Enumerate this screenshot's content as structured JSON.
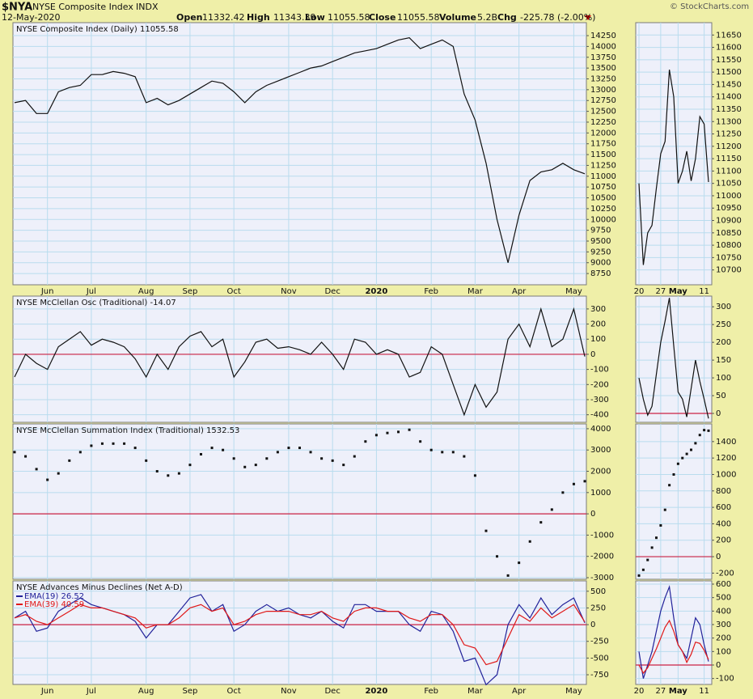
{
  "header": {
    "symbol": "$NYA",
    "name": "NYSE Composite Index",
    "exchange": "INDX",
    "date": "12-May-2020",
    "fields": [
      {
        "label": "Open",
        "value": 11332.42
      },
      {
        "label": "High",
        "value": 11343.39
      },
      {
        "label": "Low",
        "value": 11055.58
      },
      {
        "label": "Close",
        "value": 11055.58
      },
      {
        "label": "Volume",
        "value": "5.2B"
      },
      {
        "label": "Chg",
        "value": "-225.78 (-2.00%)"
      }
    ],
    "brand": "© StockCharts.com"
  },
  "chart_data": [
    {
      "type": "line",
      "title": "NYSE Composite Index (Daily) 11055.58",
      "show_categories": true,
      "grid": true,
      "color": "#111111",
      "categories": [
        null,
        null,
        null,
        "Jun",
        null,
        null,
        null,
        "Jul",
        null,
        null,
        null,
        null,
        "Aug",
        null,
        null,
        null,
        "Sep",
        null,
        null,
        null,
        "Oct",
        null,
        null,
        null,
        null,
        "Nov",
        null,
        null,
        null,
        "Dec",
        null,
        null,
        null,
        "2020",
        null,
        null,
        null,
        null,
        "Feb",
        null,
        null,
        null,
        "Mar",
        null,
        null,
        null,
        "Apr",
        null,
        null,
        null,
        null,
        "May",
        null
      ],
      "values": [
        12700,
        12750,
        12450,
        12450,
        12950,
        13050,
        13100,
        13350,
        13350,
        13420,
        13380,
        13300,
        12700,
        12800,
        12650,
        12750,
        12900,
        13050,
        13200,
        13150,
        12950,
        12700,
        12950,
        13100,
        13200,
        13300,
        13400,
        13500,
        13550,
        13650,
        13750,
        13850,
        13900,
        13950,
        14050,
        14150,
        14200,
        13950,
        14050,
        14150,
        14000,
        12900,
        12300,
        11300,
        10000,
        9000,
        10100,
        10900,
        11100,
        11150,
        11300,
        11150,
        11055.58
      ],
      "ylim": [
        8490,
        14550
      ],
      "yticks": [
        8750,
        9000,
        9250,
        9500,
        9750,
        10000,
        10250,
        10500,
        10750,
        11000,
        11250,
        11500,
        11750,
        12000,
        12250,
        12500,
        12750,
        13000,
        13250,
        13500,
        13750,
        14000,
        14250
      ]
    },
    {
      "type": "line",
      "show_categories": true,
      "grid": true,
      "color": "#111111",
      "categories": [
        "20",
        null,
        null,
        null,
        null,
        "27",
        null,
        null,
        null,
        "May",
        null,
        null,
        null,
        null,
        null,
        "11",
        null
      ],
      "values": [
        11050,
        10720,
        10850,
        10880,
        11030,
        11170,
        11220,
        11510,
        11400,
        11050,
        11100,
        11180,
        11060,
        11150,
        11320,
        11290,
        11055.58
      ],
      "ylim": [
        10640,
        11700
      ],
      "yticks": [
        10700,
        10750,
        10800,
        10850,
        10900,
        10950,
        11000,
        11050,
        11100,
        11150,
        11200,
        11250,
        11300,
        11350,
        11400,
        11450,
        11500,
        11550,
        11600,
        11650
      ]
    },
    {
      "type": "line",
      "title": "NYSE McClellan Osc (Traditional) -14.07",
      "show_categories": false,
      "grid": true,
      "color": "#111111",
      "hline": 0,
      "hline_color": "#cc2244",
      "categories": [
        null,
        null,
        null,
        "Jun",
        null,
        null,
        null,
        "Jul",
        null,
        null,
        null,
        null,
        "Aug",
        null,
        null,
        null,
        "Sep",
        null,
        null,
        null,
        "Oct",
        null,
        null,
        null,
        null,
        "Nov",
        null,
        null,
        null,
        "Dec",
        null,
        null,
        null,
        "2020",
        null,
        null,
        null,
        null,
        "Feb",
        null,
        null,
        null,
        "Mar",
        null,
        null,
        null,
        "Apr",
        null,
        null,
        null,
        null,
        "May",
        null
      ],
      "values": [
        -150,
        0,
        -60,
        -100,
        50,
        100,
        150,
        60,
        100,
        80,
        50,
        -30,
        -150,
        0,
        -100,
        50,
        120,
        150,
        50,
        100,
        -150,
        -50,
        80,
        100,
        40,
        50,
        30,
        0,
        80,
        0,
        -100,
        100,
        80,
        0,
        30,
        0,
        -150,
        -120,
        50,
        0,
        -200,
        -400,
        -200,
        -350,
        -250,
        100,
        200,
        50,
        300,
        50,
        100,
        300,
        -14.07
      ],
      "ylim": [
        -450,
        385
      ],
      "yticks": [
        -400,
        -300,
        -200,
        -100,
        0,
        100,
        200,
        300
      ]
    },
    {
      "type": "line",
      "show_categories": false,
      "grid": true,
      "color": "#111111",
      "hline": 0,
      "hline_color": "#cc2244",
      "categories": [
        "20",
        null,
        null,
        null,
        null,
        "27",
        null,
        null,
        null,
        "May",
        null,
        null,
        null,
        null,
        null,
        "11",
        null
      ],
      "values": [
        100,
        40,
        -5,
        20,
        110,
        200,
        260,
        325,
        190,
        60,
        40,
        -10,
        70,
        150,
        90,
        40,
        -14.07
      ],
      "ylim": [
        -25,
        330
      ],
      "yticks": [
        0,
        50,
        100,
        150,
        200,
        250,
        300
      ]
    },
    {
      "type": "dot",
      "title": "NYSE McClellan Summation Index (Traditional) 1532.53",
      "show_categories": false,
      "grid": true,
      "color": "#111111",
      "hline": 0,
      "hline_color": "#cc2244",
      "categories": [
        null,
        null,
        null,
        "Jun",
        null,
        null,
        null,
        "Jul",
        null,
        null,
        null,
        null,
        "Aug",
        null,
        null,
        null,
        "Sep",
        null,
        null,
        null,
        "Oct",
        null,
        null,
        null,
        null,
        "Nov",
        null,
        null,
        null,
        "Dec",
        null,
        null,
        null,
        "2020",
        null,
        null,
        null,
        null,
        "Feb",
        null,
        null,
        null,
        "Mar",
        null,
        null,
        null,
        "Apr",
        null,
        null,
        null,
        null,
        "May",
        null
      ],
      "values": [
        2900,
        2700,
        2100,
        1600,
        1900,
        2500,
        2900,
        3200,
        3300,
        3300,
        3300,
        3100,
        2500,
        2000,
        1800,
        1900,
        2300,
        2800,
        3100,
        3000,
        2600,
        2200,
        2300,
        2600,
        2900,
        3100,
        3100,
        2900,
        2600,
        2500,
        2300,
        2700,
        3400,
        3700,
        3800,
        3850,
        3950,
        3400,
        3000,
        2900,
        2900,
        2700,
        1800,
        -800,
        -2000,
        -2900,
        -2300,
        -1300,
        -400,
        200,
        1000,
        1400,
        1532.53
      ],
      "ylim": [
        -3075,
        4225
      ],
      "yticks": [
        -3000,
        -2000,
        -1000,
        0,
        1000,
        2000,
        3000,
        4000
      ]
    },
    {
      "type": "dot",
      "show_categories": false,
      "grid": true,
      "color": "#111111",
      "hline": 0,
      "hline_color": "#cc2244",
      "categories": [
        "20",
        null,
        null,
        null,
        null,
        "27",
        null,
        null,
        null,
        "May",
        null,
        null,
        null,
        null,
        null,
        "11",
        null
      ],
      "values": [
        -230,
        -160,
        -40,
        110,
        230,
        380,
        570,
        870,
        1000,
        1130,
        1200,
        1250,
        1300,
        1380,
        1480,
        1540,
        1532.53
      ],
      "ylim": [
        -275,
        1615
      ],
      "yticks": [
        -200,
        0,
        200,
        400,
        600,
        800,
        1000,
        1200,
        1400
      ]
    },
    {
      "type": "line",
      "title": "NYSE Advances Minus Declines (Net A-D)",
      "show_categories": true,
      "grid": true,
      "hline": 0,
      "hline_color": "#cc2244",
      "categories": [
        null,
        null,
        null,
        "Jun",
        null,
        null,
        null,
        "Jul",
        null,
        null,
        null,
        null,
        "Aug",
        null,
        null,
        null,
        "Sep",
        null,
        null,
        null,
        "Oct",
        null,
        null,
        null,
        null,
        "Nov",
        null,
        null,
        null,
        "Dec",
        null,
        null,
        null,
        "2020",
        null,
        null,
        null,
        null,
        "Feb",
        null,
        null,
        null,
        "Mar",
        null,
        null,
        null,
        "Apr",
        null,
        null,
        null,
        null,
        "May",
        null
      ],
      "series": [
        {
          "name": "EMA(19) 26.52",
          "color": "#22229a",
          "values": [
            100,
            200,
            -100,
            -50,
            200,
            300,
            400,
            300,
            250,
            200,
            150,
            50,
            -200,
            0,
            0,
            200,
            400,
            450,
            200,
            300,
            -100,
            0,
            200,
            300,
            200,
            250,
            150,
            100,
            200,
            50,
            -50,
            300,
            300,
            200,
            200,
            200,
            0,
            -100,
            200,
            150,
            -100,
            -550,
            -500,
            -900,
            -750,
            0,
            300,
            100,
            400,
            150,
            300,
            400,
            26.52
          ]
        },
        {
          "name": "EMA(39) 40.59",
          "color": "#e01818",
          "values": [
            100,
            150,
            50,
            0,
            100,
            200,
            300,
            250,
            250,
            200,
            150,
            100,
            -50,
            0,
            0,
            100,
            250,
            300,
            200,
            250,
            0,
            50,
            150,
            200,
            200,
            200,
            150,
            150,
            200,
            100,
            50,
            200,
            250,
            250,
            200,
            200,
            100,
            50,
            150,
            150,
            0,
            -300,
            -350,
            -600,
            -550,
            -200,
            150,
            50,
            250,
            100,
            200,
            300,
            40.59
          ]
        }
      ],
      "ylim": [
        -895,
        655
      ],
      "yticks": [
        -750,
        -500,
        -250,
        0,
        250,
        500
      ]
    },
    {
      "type": "line",
      "show_categories": true,
      "grid": true,
      "hline": 0,
      "hline_color": "#cc2244",
      "categories": [
        "20",
        null,
        null,
        null,
        null,
        "27",
        null,
        null,
        null,
        "May",
        null,
        null,
        null,
        null,
        null,
        "11",
        null
      ],
      "series": [
        {
          "color": "#22229a",
          "values": [
            100,
            -100,
            0,
            100,
            250,
            400,
            500,
            580,
            350,
            150,
            100,
            50,
            200,
            350,
            300,
            150,
            26.52
          ]
        },
        {
          "color": "#e01818",
          "values": [
            0,
            -60,
            -20,
            50,
            120,
            200,
            280,
            330,
            250,
            150,
            100,
            20,
            80,
            170,
            160,
            110,
            40.59
          ]
        }
      ],
      "ylim": [
        -144,
        624
      ],
      "yticks": [
        -100,
        0,
        100,
        200,
        300,
        400,
        500,
        600
      ]
    }
  ]
}
